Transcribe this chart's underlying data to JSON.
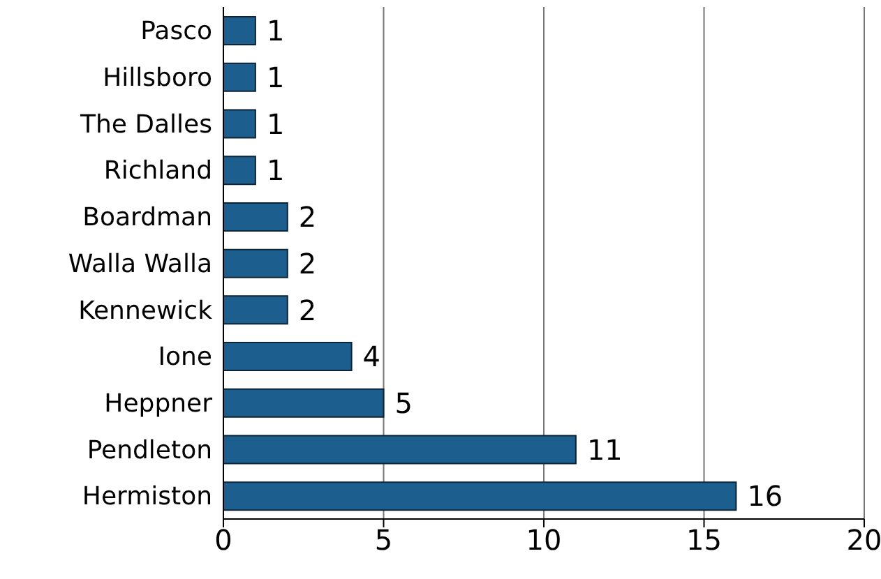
{
  "chart_data": {
    "type": "bar",
    "orientation": "horizontal",
    "categories": [
      "Pasco",
      "Hillsboro",
      "The Dalles",
      "Richland",
      "Boardman",
      "Walla Walla",
      "Kennewick",
      "Ione",
      "Heppner",
      "Pendleton",
      "Hermiston"
    ],
    "values": [
      1,
      1,
      1,
      1,
      2,
      2,
      2,
      4,
      5,
      11,
      16
    ],
    "color": "#1c5f8e",
    "xlim": [
      0,
      20
    ],
    "xticks": [
      0,
      5,
      10,
      15,
      20
    ],
    "grid": "x",
    "data_labels": true
  }
}
